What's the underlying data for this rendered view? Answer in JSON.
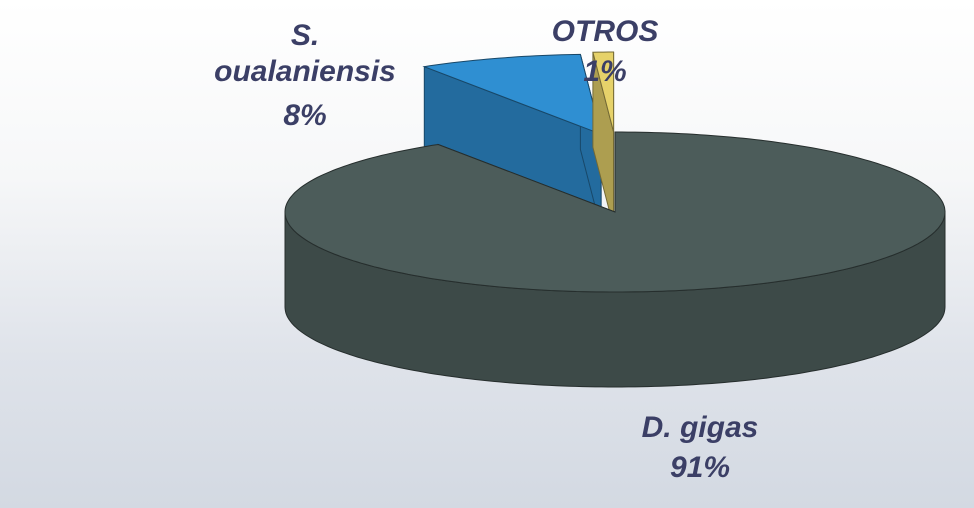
{
  "chart_data": {
    "type": "pie3d",
    "categories": [
      "D. gigas",
      "S. oualaniensis",
      "OTROS"
    ],
    "values": [
      91,
      8,
      1
    ],
    "value_labels": [
      "91%",
      "8%",
      "1%"
    ],
    "colors": [
      "#4c5c5a",
      "#2f8fd2",
      "#e6d26a"
    ]
  }
}
